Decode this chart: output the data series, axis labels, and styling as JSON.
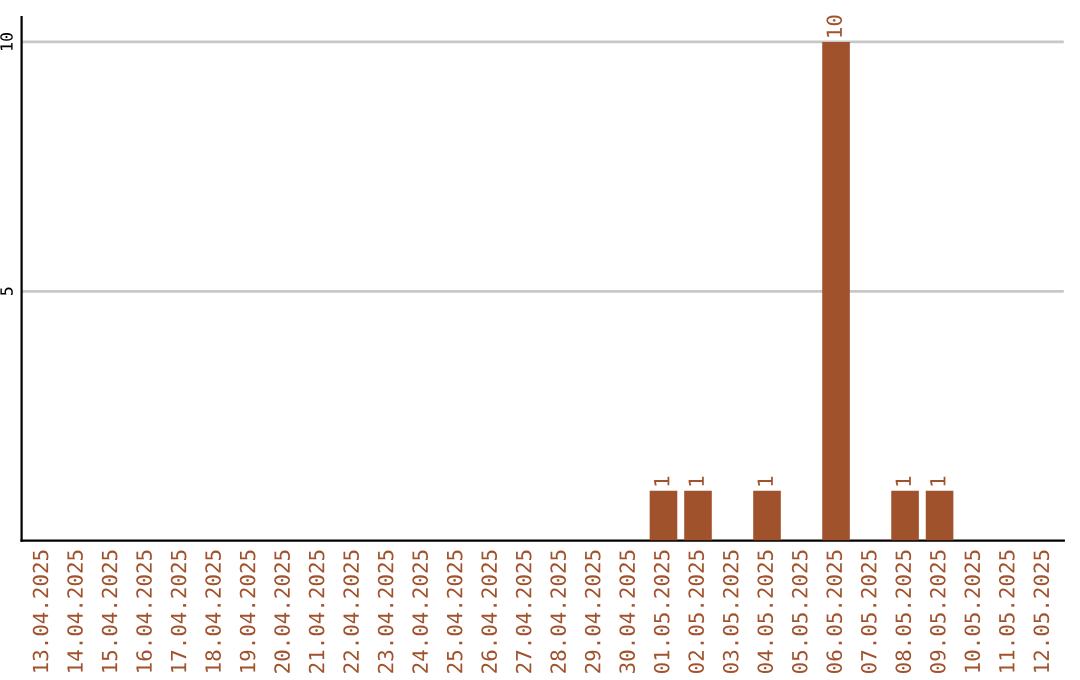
{
  "chart_data": {
    "type": "bar",
    "categories": [
      "13.04.2025",
      "14.04.2025",
      "15.04.2025",
      "16.04.2025",
      "17.04.2025",
      "18.04.2025",
      "19.04.2025",
      "20.04.2025",
      "21.04.2025",
      "22.04.2025",
      "23.04.2025",
      "24.04.2025",
      "25.04.2025",
      "26.04.2025",
      "27.04.2025",
      "28.04.2025",
      "29.04.2025",
      "30.04.2025",
      "01.05.2025",
      "02.05.2025",
      "03.05.2025",
      "04.05.2025",
      "05.05.2025",
      "06.05.2025",
      "07.05.2025",
      "08.05.2025",
      "09.05.2025",
      "10.05.2025",
      "11.05.2025",
      "12.05.2025"
    ],
    "values": [
      0,
      0,
      0,
      0,
      0,
      0,
      0,
      0,
      0,
      0,
      0,
      0,
      0,
      0,
      0,
      0,
      0,
      0,
      1,
      1,
      0,
      1,
      0,
      10,
      0,
      1,
      1,
      0,
      0,
      0
    ],
    "value_labels": [
      null,
      null,
      null,
      null,
      null,
      null,
      null,
      null,
      null,
      null,
      null,
      null,
      null,
      null,
      null,
      null,
      null,
      null,
      "1",
      "1",
      null,
      "1",
      null,
      "10",
      null,
      "1",
      "1",
      null,
      null,
      null
    ],
    "color": "#a0522d",
    "ylim": [
      0,
      10.5
    ],
    "yticks": [
      5,
      10
    ],
    "grid": "y"
  }
}
